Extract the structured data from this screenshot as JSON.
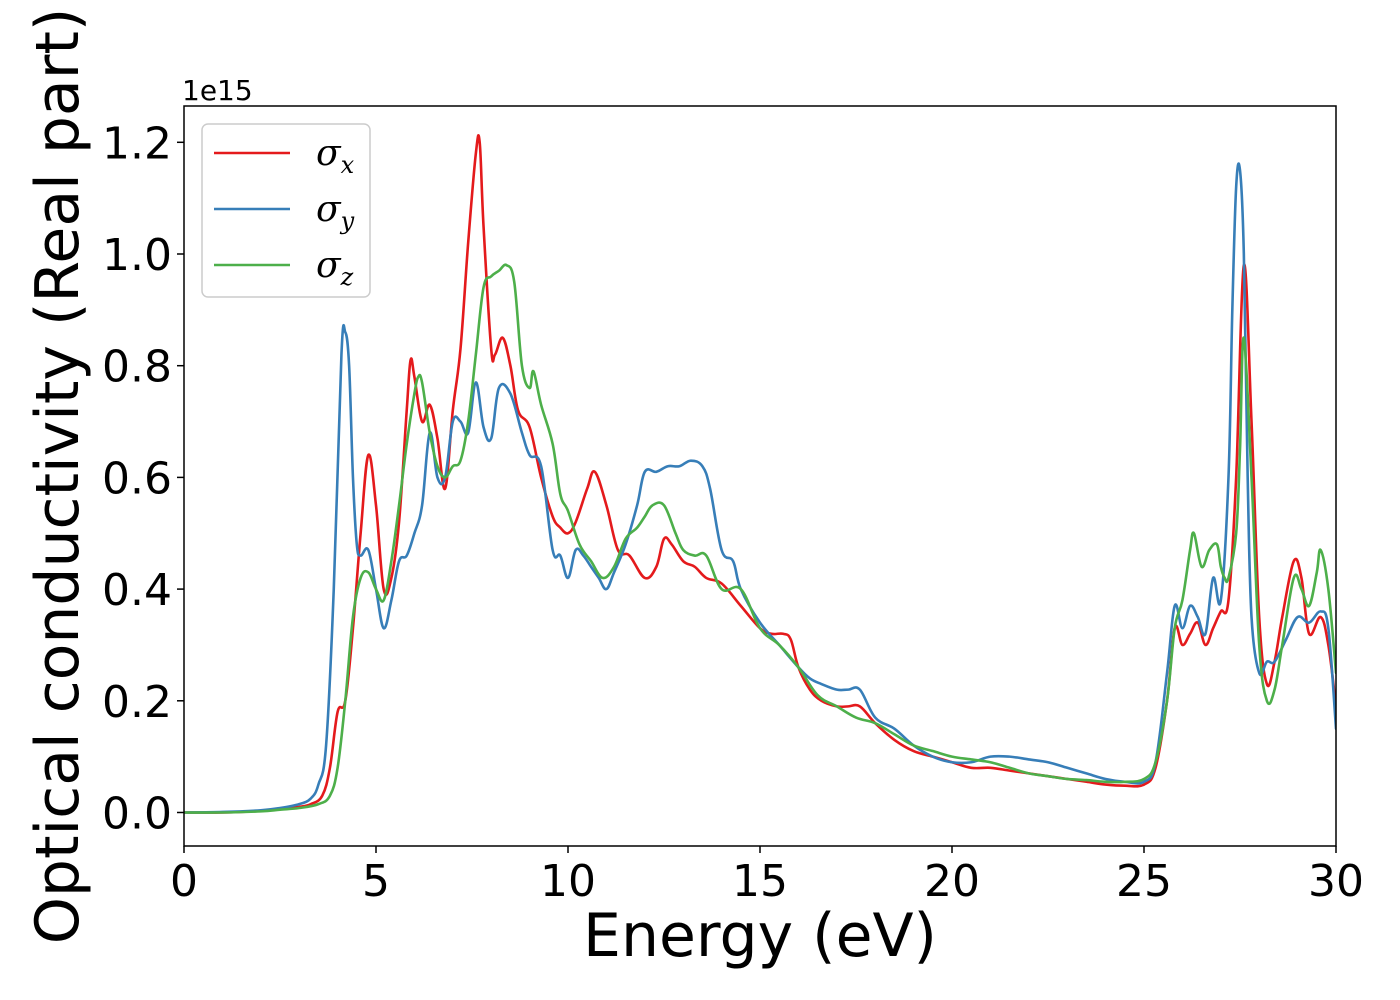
{
  "chart_data": {
    "type": "line",
    "title": "",
    "xlabel": "Energy (eV)",
    "ylabel": "Optical conductivity (Real part)",
    "y_offset_label": "1e15",
    "xlim": [
      0,
      30
    ],
    "ylim": [
      -0.06,
      1.265
    ],
    "x_ticks": [
      0,
      5,
      10,
      15,
      20,
      25,
      30
    ],
    "x_tick_labels": [
      "0",
      "5",
      "10",
      "15",
      "20",
      "25",
      "30"
    ],
    "y_ticks": [
      0.0,
      0.2,
      0.4,
      0.6,
      0.8,
      1.0,
      1.2
    ],
    "y_tick_labels": [
      "0.0",
      "0.2",
      "0.4",
      "0.6",
      "0.8",
      "1.0",
      "1.2"
    ],
    "grid": false,
    "legend_position": "top-left",
    "series": [
      {
        "key": "sigma_x",
        "name": "σx",
        "symbol": "σ",
        "subscript": "x",
        "color": "#e41a1c",
        "x": [
          0,
          1,
          2,
          2.5,
          3,
          3.3,
          3.6,
          3.8,
          4,
          4.2,
          4.4,
          4.6,
          4.8,
          5,
          5.2,
          5.4,
          5.6,
          5.8,
          5.9,
          6,
          6.2,
          6.4,
          6.6,
          6.8,
          7,
          7.2,
          7.4,
          7.6,
          7.7,
          7.8,
          8,
          8.1,
          8.3,
          8.5,
          8.7,
          9,
          9.3,
          9.6,
          9.8,
          10,
          10.2,
          10.5,
          10.7,
          11,
          11.3,
          11.6,
          12,
          12.3,
          12.5,
          12.7,
          13,
          13.3,
          13.6,
          14,
          14.5,
          15,
          15.3,
          15.6,
          15.8,
          16,
          16.3,
          16.6,
          17,
          17.3,
          17.6,
          18,
          18.5,
          19,
          19.5,
          20,
          20.5,
          21,
          21.5,
          22,
          22.5,
          23,
          23.5,
          24,
          24.5,
          25,
          25.3,
          25.6,
          25.8,
          26,
          26.2,
          26.4,
          26.6,
          26.8,
          27,
          27.2,
          27.4,
          27.6,
          27.8,
          28,
          28.2,
          28.4,
          28.6,
          28.9,
          29.1,
          29.3,
          29.6,
          29.8,
          30
        ],
        "y": [
          0.0,
          0.0,
          0.003,
          0.006,
          0.01,
          0.015,
          0.03,
          0.08,
          0.18,
          0.2,
          0.33,
          0.5,
          0.64,
          0.55,
          0.4,
          0.42,
          0.52,
          0.72,
          0.81,
          0.78,
          0.7,
          0.73,
          0.67,
          0.58,
          0.72,
          0.83,
          1.02,
          1.18,
          1.2,
          1.05,
          0.83,
          0.82,
          0.85,
          0.8,
          0.72,
          0.69,
          0.6,
          0.53,
          0.51,
          0.5,
          0.52,
          0.58,
          0.61,
          0.55,
          0.47,
          0.46,
          0.42,
          0.44,
          0.49,
          0.48,
          0.45,
          0.44,
          0.42,
          0.41,
          0.37,
          0.33,
          0.32,
          0.32,
          0.31,
          0.26,
          0.22,
          0.2,
          0.19,
          0.19,
          0.19,
          0.16,
          0.13,
          0.11,
          0.1,
          0.09,
          0.08,
          0.08,
          0.075,
          0.07,
          0.065,
          0.06,
          0.055,
          0.05,
          0.048,
          0.05,
          0.08,
          0.2,
          0.33,
          0.3,
          0.32,
          0.34,
          0.3,
          0.33,
          0.36,
          0.38,
          0.6,
          0.98,
          0.7,
          0.35,
          0.23,
          0.27,
          0.35,
          0.45,
          0.42,
          0.32,
          0.35,
          0.3,
          0.19
        ]
      },
      {
        "key": "sigma_y",
        "name": "σy",
        "symbol": "σ",
        "subscript": "y",
        "color": "#377eb8",
        "x": [
          0,
          1,
          2,
          2.5,
          3,
          3.3,
          3.5,
          3.7,
          3.9,
          4.1,
          4.2,
          4.3,
          4.4,
          4.5,
          4.6,
          4.8,
          5,
          5.2,
          5.4,
          5.6,
          5.8,
          6,
          6.2,
          6.4,
          6.6,
          6.8,
          7,
          7.2,
          7.4,
          7.6,
          7.8,
          8,
          8.2,
          8.5,
          8.8,
          9,
          9.3,
          9.6,
          9.8,
          10,
          10.2,
          10.4,
          10.6,
          10.8,
          11,
          11.2,
          11.5,
          11.8,
          12,
          12.3,
          12.6,
          12.9,
          13.2,
          13.5,
          13.7,
          14,
          14.3,
          14.5,
          15,
          15.5,
          16,
          16.3,
          16.6,
          17,
          17.3,
          17.6,
          18,
          18.5,
          19,
          19.5,
          20,
          20.5,
          21,
          21.5,
          22,
          22.5,
          23,
          23.5,
          24,
          24.5,
          25,
          25.3,
          25.6,
          25.8,
          26,
          26.2,
          26.4,
          26.6,
          26.8,
          27,
          27.2,
          27.3,
          27.4,
          27.5,
          27.6,
          27.7,
          27.8,
          28,
          28.2,
          28.4,
          28.7,
          29,
          29.3,
          29.6,
          29.8,
          30
        ],
        "y": [
          0.0,
          0.001,
          0.004,
          0.008,
          0.015,
          0.025,
          0.05,
          0.12,
          0.4,
          0.82,
          0.86,
          0.8,
          0.6,
          0.48,
          0.46,
          0.47,
          0.4,
          0.33,
          0.38,
          0.45,
          0.46,
          0.5,
          0.55,
          0.68,
          0.6,
          0.6,
          0.7,
          0.7,
          0.68,
          0.77,
          0.69,
          0.67,
          0.76,
          0.75,
          0.68,
          0.64,
          0.62,
          0.47,
          0.46,
          0.42,
          0.47,
          0.46,
          0.44,
          0.42,
          0.4,
          0.43,
          0.48,
          0.55,
          0.61,
          0.61,
          0.62,
          0.62,
          0.63,
          0.62,
          0.58,
          0.47,
          0.45,
          0.4,
          0.34,
          0.3,
          0.26,
          0.24,
          0.23,
          0.22,
          0.22,
          0.22,
          0.17,
          0.15,
          0.12,
          0.1,
          0.09,
          0.09,
          0.1,
          0.1,
          0.095,
          0.09,
          0.08,
          0.07,
          0.06,
          0.055,
          0.055,
          0.09,
          0.25,
          0.37,
          0.33,
          0.37,
          0.35,
          0.32,
          0.42,
          0.38,
          0.6,
          0.9,
          1.12,
          1.15,
          1.0,
          0.6,
          0.35,
          0.25,
          0.27,
          0.27,
          0.31,
          0.35,
          0.34,
          0.36,
          0.33,
          0.15
        ]
      },
      {
        "key": "sigma_z",
        "name": "σz",
        "symbol": "σ",
        "subscript": "z",
        "color": "#4daf4a",
        "x": [
          0,
          1,
          2,
          2.5,
          3,
          3.5,
          3.8,
          4,
          4.2,
          4.4,
          4.6,
          4.8,
          5,
          5.2,
          5.4,
          5.6,
          5.8,
          6,
          6.1,
          6.2,
          6.4,
          6.6,
          6.8,
          7,
          7.2,
          7.4,
          7.6,
          7.8,
          8,
          8.2,
          8.4,
          8.6,
          8.8,
          9,
          9.1,
          9.3,
          9.6,
          9.8,
          10,
          10.3,
          10.6,
          10.9,
          11.2,
          11.5,
          11.8,
          12,
          12.2,
          12.5,
          12.8,
          13,
          13.3,
          13.6,
          14,
          14.5,
          15,
          15.5,
          16,
          16.5,
          17,
          17.5,
          18,
          18.5,
          19,
          19.5,
          20,
          20.5,
          21,
          21.5,
          22,
          22.5,
          23,
          23.5,
          24,
          24.5,
          25,
          25.3,
          25.6,
          25.8,
          26,
          26.2,
          26.3,
          26.5,
          26.7,
          26.9,
          27,
          27.1,
          27.2,
          27.4,
          27.5,
          27.6,
          27.8,
          28,
          28.2,
          28.4,
          28.6,
          28.9,
          29.1,
          29.3,
          29.5,
          29.6,
          29.8,
          30
        ],
        "y": [
          0.0,
          0.0,
          0.002,
          0.005,
          0.008,
          0.015,
          0.03,
          0.08,
          0.2,
          0.35,
          0.42,
          0.43,
          0.4,
          0.38,
          0.45,
          0.55,
          0.66,
          0.75,
          0.78,
          0.77,
          0.68,
          0.62,
          0.6,
          0.62,
          0.63,
          0.7,
          0.82,
          0.94,
          0.96,
          0.97,
          0.98,
          0.95,
          0.8,
          0.76,
          0.79,
          0.73,
          0.66,
          0.57,
          0.54,
          0.48,
          0.45,
          0.42,
          0.44,
          0.49,
          0.51,
          0.53,
          0.55,
          0.55,
          0.5,
          0.47,
          0.46,
          0.46,
          0.4,
          0.4,
          0.33,
          0.3,
          0.26,
          0.21,
          0.19,
          0.17,
          0.16,
          0.14,
          0.12,
          0.11,
          0.1,
          0.095,
          0.09,
          0.08,
          0.07,
          0.065,
          0.06,
          0.058,
          0.055,
          0.055,
          0.06,
          0.09,
          0.2,
          0.33,
          0.38,
          0.47,
          0.5,
          0.44,
          0.47,
          0.48,
          0.44,
          0.42,
          0.42,
          0.5,
          0.65,
          0.85,
          0.6,
          0.3,
          0.2,
          0.22,
          0.3,
          0.42,
          0.4,
          0.37,
          0.43,
          0.47,
          0.4,
          0.25
        ]
      }
    ]
  }
}
